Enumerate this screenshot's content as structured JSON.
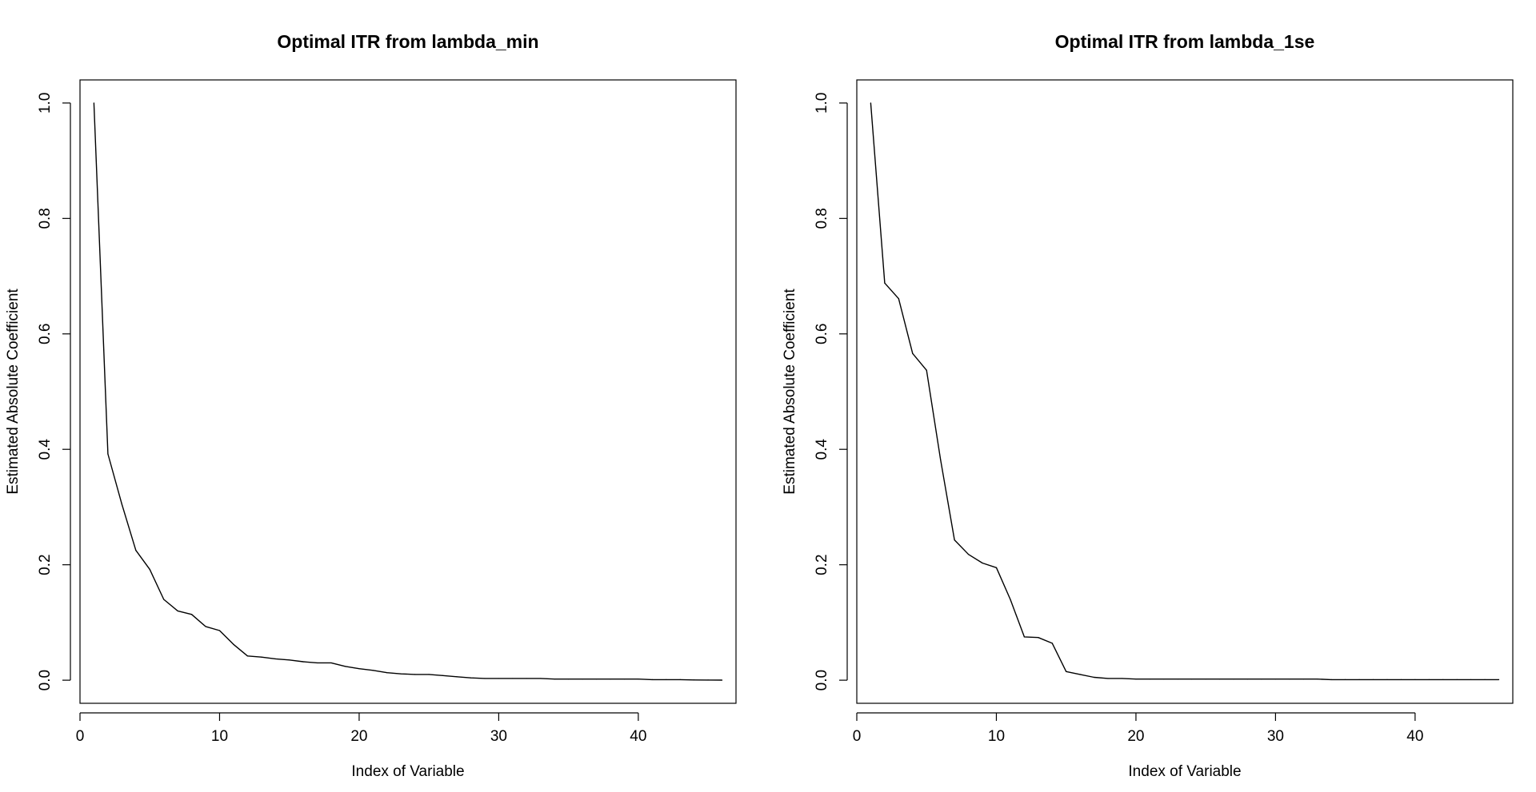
{
  "chart_data": [
    {
      "type": "line",
      "title": "Optimal ITR from lambda_min",
      "xlabel": "Index of Variable",
      "ylabel": "Estimated Absolute Coefficient",
      "xlim": [
        0,
        47
      ],
      "ylim": [
        -0.04,
        1.04
      ],
      "xticks": [
        0,
        10,
        20,
        30,
        40
      ],
      "yticks": [
        0.0,
        0.2,
        0.4,
        0.6,
        0.8,
        1.0
      ],
      "xtick_labels": [
        "0",
        "10",
        "20",
        "30",
        "40"
      ],
      "ytick_labels": [
        "0.0",
        "0.2",
        "0.4",
        "0.6",
        "0.8",
        "1.0"
      ],
      "grid": false,
      "x": [
        1,
        2,
        3,
        4,
        5,
        6,
        7,
        8,
        9,
        10,
        11,
        12,
        13,
        14,
        15,
        16,
        17,
        18,
        19,
        20,
        21,
        22,
        23,
        24,
        25,
        26,
        27,
        28,
        29,
        30,
        31,
        32,
        33,
        34,
        35,
        36,
        37,
        38,
        39,
        40,
        41,
        42,
        43,
        44,
        45,
        46
      ],
      "values": [
        1.0,
        0.392,
        0.305,
        0.225,
        0.192,
        0.14,
        0.12,
        0.114,
        0.093,
        0.086,
        0.062,
        0.042,
        0.04,
        0.037,
        0.035,
        0.032,
        0.03,
        0.03,
        0.024,
        0.02,
        0.017,
        0.013,
        0.011,
        0.01,
        0.01,
        0.008,
        0.006,
        0.004,
        0.003,
        0.003,
        0.003,
        0.003,
        0.003,
        0.002,
        0.002,
        0.002,
        0.002,
        0.002,
        0.002,
        0.002,
        0.001,
        0.001,
        0.001,
        0.0005,
        0.0003,
        0.0001
      ]
    },
    {
      "type": "line",
      "title": "Optimal ITR from lambda_1se",
      "xlabel": "Index of Variable",
      "ylabel": "Estimated Absolute Coefficient",
      "xlim": [
        0,
        47
      ],
      "ylim": [
        -0.04,
        1.04
      ],
      "xticks": [
        0,
        10,
        20,
        30,
        40
      ],
      "yticks": [
        0.0,
        0.2,
        0.4,
        0.6,
        0.8,
        1.0
      ],
      "xtick_labels": [
        "0",
        "10",
        "20",
        "30",
        "40"
      ],
      "ytick_labels": [
        "0.0",
        "0.2",
        "0.4",
        "0.6",
        "0.8",
        "1.0"
      ],
      "grid": false,
      "x": [
        1,
        2,
        3,
        4,
        5,
        6,
        7,
        8,
        9,
        10,
        11,
        12,
        13,
        14,
        15,
        16,
        17,
        18,
        19,
        20,
        21,
        22,
        23,
        24,
        25,
        26,
        27,
        28,
        29,
        30,
        31,
        32,
        33,
        34,
        35,
        36,
        37,
        38,
        39,
        40,
        41,
        42,
        43,
        44,
        45,
        46
      ],
      "values": [
        1.0,
        0.688,
        0.661,
        0.566,
        0.537,
        0.382,
        0.243,
        0.218,
        0.203,
        0.195,
        0.14,
        0.075,
        0.074,
        0.064,
        0.015,
        0.01,
        0.005,
        0.003,
        0.003,
        0.002,
        0.002,
        0.002,
        0.002,
        0.002,
        0.002,
        0.002,
        0.002,
        0.002,
        0.002,
        0.002,
        0.002,
        0.002,
        0.002,
        0.001,
        0.001,
        0.001,
        0.001,
        0.001,
        0.001,
        0.001,
        0.001,
        0.001,
        0.001,
        0.001,
        0.001,
        0.001
      ]
    }
  ]
}
